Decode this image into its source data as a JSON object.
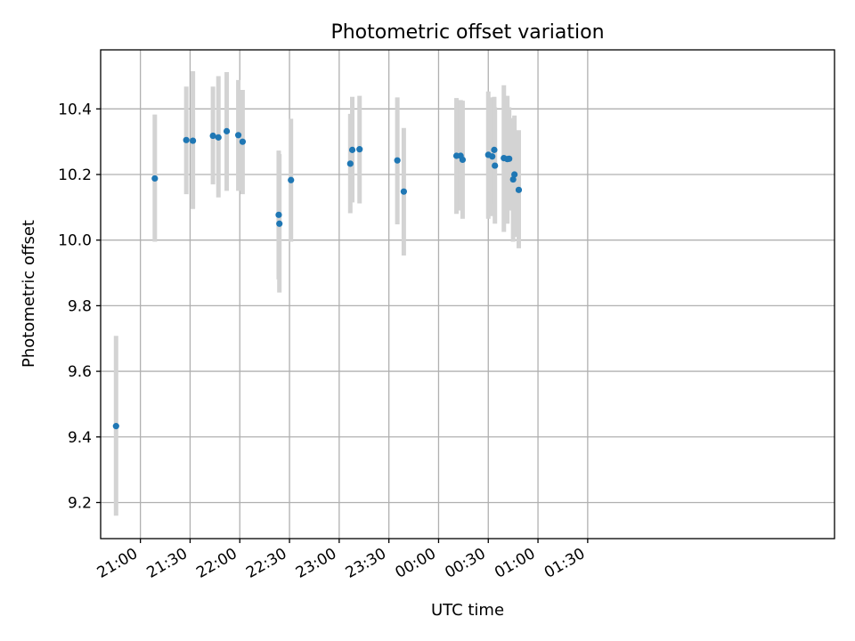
{
  "chart_data": {
    "type": "scatter",
    "title": "Photometric offset variation",
    "xlabel": "UTC time",
    "ylabel": "Photometric offset",
    "x_unit": "UTC time (minutes; 21:00 = 0)",
    "xlim": [
      -24,
      419
    ],
    "ylim": [
      9.09,
      10.58
    ],
    "xticks": [
      0,
      30,
      60,
      90,
      120,
      150,
      180,
      210,
      240,
      270
    ],
    "xtick_labels": [
      "21:00",
      "21:30",
      "22:00",
      "22:30",
      "23:00",
      "23:30",
      "00:00",
      "00:30",
      "01:00",
      "01:30"
    ],
    "yticks": [
      9.2,
      9.4,
      9.6,
      9.8,
      10.0,
      10.2,
      10.4
    ],
    "ytick_labels": [
      "9.2",
      "9.4",
      "9.6",
      "9.8",
      "10.0",
      "10.2",
      "10.4"
    ],
    "grid": true,
    "marker_color": "#1f77b4",
    "errorbar_color": "#d3d3d3",
    "points": [
      {
        "x": -14.7,
        "y": 9.433,
        "ylow": 9.16,
        "yhigh": 9.708
      },
      {
        "x": 8.7,
        "y": 10.188,
        "ylow": 9.995,
        "yhigh": 10.383
      },
      {
        "x": 27.7,
        "y": 10.305,
        "ylow": 10.14,
        "yhigh": 10.468
      },
      {
        "x": 31.7,
        "y": 10.303,
        "ylow": 10.095,
        "yhigh": 10.515
      },
      {
        "x": 43.8,
        "y": 10.318,
        "ylow": 10.17,
        "yhigh": 10.468
      },
      {
        "x": 47.1,
        "y": 10.313,
        "ylow": 10.13,
        "yhigh": 10.5
      },
      {
        "x": 52.1,
        "y": 10.332,
        "ylow": 10.15,
        "yhigh": 10.512
      },
      {
        "x": 59.1,
        "y": 10.32,
        "ylow": 10.15,
        "yhigh": 10.488
      },
      {
        "x": 61.7,
        "y": 10.3,
        "ylow": 10.14,
        "yhigh": 10.458
      },
      {
        "x": 83.5,
        "y": 10.077,
        "ylow": 9.88,
        "yhigh": 10.273
      },
      {
        "x": 83.9,
        "y": 10.05,
        "ylow": 9.84,
        "yhigh": 10.262
      },
      {
        "x": 90.9,
        "y": 10.183,
        "ylow": 9.995,
        "yhigh": 10.37
      },
      {
        "x": 126.7,
        "y": 10.233,
        "ylow": 10.082,
        "yhigh": 10.385
      },
      {
        "x": 127.9,
        "y": 10.275,
        "ylow": 10.115,
        "yhigh": 10.437
      },
      {
        "x": 132.3,
        "y": 10.277,
        "ylow": 10.112,
        "yhigh": 10.44
      },
      {
        "x": 155.1,
        "y": 10.243,
        "ylow": 10.048,
        "yhigh": 10.435
      },
      {
        "x": 159.0,
        "y": 10.148,
        "ylow": 9.953,
        "yhigh": 10.342
      },
      {
        "x": 190.8,
        "y": 10.257,
        "ylow": 10.08,
        "yhigh": 10.433
      },
      {
        "x": 193.3,
        "y": 10.257,
        "ylow": 10.09,
        "yhigh": 10.427
      },
      {
        "x": 194.5,
        "y": 10.245,
        "ylow": 10.065,
        "yhigh": 10.425
      },
      {
        "x": 210.0,
        "y": 10.26,
        "ylow": 10.065,
        "yhigh": 10.453
      },
      {
        "x": 212.4,
        "y": 10.255,
        "ylow": 10.073,
        "yhigh": 10.435
      },
      {
        "x": 213.6,
        "y": 10.275,
        "ylow": 10.11,
        "yhigh": 10.437
      },
      {
        "x": 214.0,
        "y": 10.227,
        "ylow": 10.05,
        "yhigh": 10.405
      },
      {
        "x": 219.4,
        "y": 10.25,
        "ylow": 10.025,
        "yhigh": 10.472
      },
      {
        "x": 221.5,
        "y": 10.247,
        "ylow": 10.05,
        "yhigh": 10.44
      },
      {
        "x": 222.6,
        "y": 10.248,
        "ylow": 10.09,
        "yhigh": 10.405
      },
      {
        "x": 225.0,
        "y": 10.185,
        "ylow": 9.995,
        "yhigh": 10.372
      },
      {
        "x": 225.8,
        "y": 10.2,
        "ylow": 10.01,
        "yhigh": 10.38
      },
      {
        "x": 228.4,
        "y": 10.153,
        "ylow": 9.975,
        "yhigh": 10.335
      }
    ]
  }
}
